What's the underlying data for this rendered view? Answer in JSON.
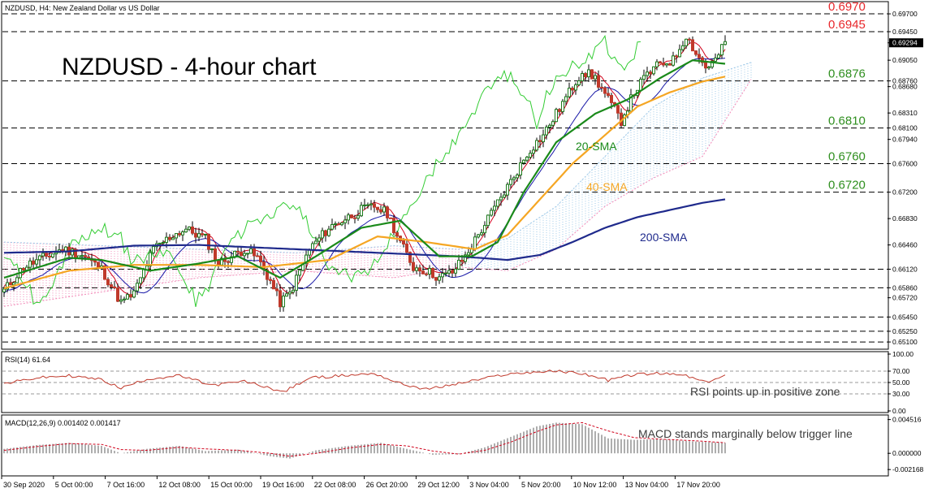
{
  "header": {
    "symbol_label": "NZDUSD, H4:  New Zealand Dollar vs US Dollar"
  },
  "title": "NZDUSD - 4-hour chart",
  "colors": {
    "level_label": "#e8272b",
    "support_label": "#2f8f1f",
    "sma20": "#1a8a1a",
    "sma40": "#f5a623",
    "sma200": "#1f2a8c",
    "tenkan": "#d0021b",
    "kijun": "#1a1aa8",
    "chikou": "#33cc33",
    "cloud_bull": "#9ec9e8",
    "cloud_bear": "#f28ab8",
    "candle_up": "#1e7a1e",
    "candle_down": "#c0392b",
    "rsi_line": "#c0392b",
    "macd_signal": "#d0021b",
    "macd_hist": "#9a9a9a",
    "annotation_text": "#3c3c3c"
  },
  "chart_data": [
    {
      "type": "candlestick",
      "name": "price",
      "ylim": [
        0.6501,
        0.6986
      ],
      "x_ticks": [
        "30 Sep 2020",
        "5 Oct 00:00",
        "7 Oct 16:00",
        "12 Oct 08:00",
        "15 Oct 00:00",
        "19 Oct 16:00",
        "22 Oct 08:00",
        "26 Oct 20:00",
        "29 Oct 12:00",
        "3 Nov 04:00",
        "5 Nov 20:00",
        "10 Nov 12:00",
        "13 Nov 04:00",
        "17 Nov 20:00"
      ],
      "y_ticks": [
        "0.69700",
        "0.69450",
        "0.69294",
        "0.69050",
        "0.68760",
        "0.68680",
        "0.68310",
        "0.68100",
        "0.67940",
        "0.67600",
        "0.67200",
        "0.66830",
        "0.66460",
        "0.66120",
        "0.65860",
        "0.65720",
        "0.65450",
        "0.65250",
        "0.65100"
      ],
      "current_price": "0.69294",
      "levels": [
        {
          "value": 0.697,
          "label": "0.6970",
          "style": "resistance"
        },
        {
          "value": 0.6945,
          "label": "0.6945",
          "style": "resistance"
        },
        {
          "value": 0.6876,
          "label": "0.6876",
          "style": "support"
        },
        {
          "value": 0.681,
          "label": "0.6810",
          "style": "support"
        },
        {
          "value": 0.676,
          "label": "0.6760",
          "style": "support"
        },
        {
          "value": 0.672,
          "label": "0.6720",
          "style": "support"
        },
        {
          "value": 0.6612,
          "label": "",
          "style": "plain"
        },
        {
          "value": 0.6586,
          "label": "",
          "style": "plain"
        },
        {
          "value": 0.6545,
          "label": "",
          "style": "plain"
        },
        {
          "value": 0.6525,
          "label": "",
          "style": "plain"
        },
        {
          "value": 0.651,
          "label": "",
          "style": "plain"
        }
      ],
      "indicator_labels": {
        "sma20": "20-SMA",
        "sma40": "40-SMA",
        "sma200": "200-SMA"
      },
      "close_path": [
        [
          0,
          0.6582
        ],
        [
          6,
          0.6615
        ],
        [
          12,
          0.6628
        ],
        [
          18,
          0.664
        ],
        [
          24,
          0.6632
        ],
        [
          30,
          0.6612
        ],
        [
          36,
          0.6565
        ],
        [
          40,
          0.6578
        ],
        [
          46,
          0.664
        ],
        [
          52,
          0.666
        ],
        [
          56,
          0.6668
        ],
        [
          62,
          0.6655
        ],
        [
          66,
          0.662
        ],
        [
          70,
          0.663
        ],
        [
          74,
          0.664
        ],
        [
          78,
          0.6628
        ],
        [
          82,
          0.6595
        ],
        [
          85,
          0.6565
        ],
        [
          88,
          0.6578
        ],
        [
          94,
          0.664
        ],
        [
          100,
          0.667
        ],
        [
          106,
          0.6685
        ],
        [
          110,
          0.6695
        ],
        [
          114,
          0.67
        ],
        [
          118,
          0.669
        ],
        [
          122,
          0.665
        ],
        [
          126,
          0.6615
        ],
        [
          130,
          0.661
        ],
        [
          134,
          0.66
        ],
        [
          138,
          0.6608
        ],
        [
          142,
          0.663
        ],
        [
          146,
          0.666
        ],
        [
          150,
          0.669
        ],
        [
          154,
          0.672
        ],
        [
          158,
          0.675
        ],
        [
          162,
          0.678
        ],
        [
          166,
          0.68
        ],
        [
          170,
          0.683
        ],
        [
          174,
          0.686
        ],
        [
          178,
          0.689
        ],
        [
          182,
          0.688
        ],
        [
          186,
          0.685
        ],
        [
          190,
          0.682
        ],
        [
          194,
          0.686
        ],
        [
          198,
          0.6885
        ],
        [
          202,
          0.69
        ],
        [
          206,
          0.6905
        ],
        [
          210,
          0.694
        ],
        [
          213,
          0.6915
        ],
        [
          216,
          0.6895
        ],
        [
          219,
          0.6905
        ],
        [
          222,
          0.6929
        ]
      ],
      "sma20_path": [
        [
          0,
          0.66
        ],
        [
          20,
          0.6628
        ],
        [
          30,
          0.6625
        ],
        [
          45,
          0.661
        ],
        [
          60,
          0.662
        ],
        [
          72,
          0.663
        ],
        [
          85,
          0.66
        ],
        [
          96,
          0.663
        ],
        [
          110,
          0.667
        ],
        [
          122,
          0.668
        ],
        [
          134,
          0.663
        ],
        [
          144,
          0.663
        ],
        [
          152,
          0.665
        ],
        [
          160,
          0.672
        ],
        [
          170,
          0.679
        ],
        [
          182,
          0.683
        ],
        [
          192,
          0.685
        ],
        [
          202,
          0.688
        ],
        [
          212,
          0.6905
        ],
        [
          222,
          0.69
        ]
      ],
      "sma40_path": [
        [
          0,
          0.6585
        ],
        [
          20,
          0.661
        ],
        [
          40,
          0.6618
        ],
        [
          60,
          0.6618
        ],
        [
          80,
          0.6615
        ],
        [
          100,
          0.6625
        ],
        [
          115,
          0.6658
        ],
        [
          130,
          0.665
        ],
        [
          145,
          0.664
        ],
        [
          155,
          0.666
        ],
        [
          165,
          0.671
        ],
        [
          175,
          0.676
        ],
        [
          185,
          0.68
        ],
        [
          195,
          0.684
        ],
        [
          205,
          0.686
        ],
        [
          215,
          0.6875
        ],
        [
          222,
          0.6882
        ]
      ],
      "sma200_path": [
        [
          0,
          0.6635
        ],
        [
          20,
          0.6637
        ],
        [
          40,
          0.6645
        ],
        [
          60,
          0.6646
        ],
        [
          80,
          0.6642
        ],
        [
          100,
          0.6638
        ],
        [
          120,
          0.6634
        ],
        [
          140,
          0.663
        ],
        [
          155,
          0.6625
        ],
        [
          165,
          0.6632
        ],
        [
          175,
          0.665
        ],
        [
          185,
          0.667
        ],
        [
          195,
          0.6685
        ],
        [
          205,
          0.6695
        ],
        [
          215,
          0.6705
        ],
        [
          222,
          0.671
        ]
      ],
      "cloud_top": [
        [
          0,
          0.665
        ],
        [
          30,
          0.6645
        ],
        [
          60,
          0.664
        ],
        [
          90,
          0.6635
        ],
        [
          120,
          0.6645
        ],
        [
          140,
          0.664
        ],
        [
          155,
          0.6655
        ],
        [
          170,
          0.67
        ],
        [
          185,
          0.677
        ],
        [
          200,
          0.684
        ],
        [
          215,
          0.688
        ],
        [
          230,
          0.6902
        ]
      ],
      "cloud_bottom": [
        [
          0,
          0.656
        ],
        [
          30,
          0.658
        ],
        [
          60,
          0.66
        ],
        [
          90,
          0.661
        ],
        [
          120,
          0.66
        ],
        [
          140,
          0.6615
        ],
        [
          155,
          0.661
        ],
        [
          170,
          0.664
        ],
        [
          185,
          0.67
        ],
        [
          200,
          0.674
        ],
        [
          215,
          0.677
        ],
        [
          230,
          0.6878
        ]
      ]
    },
    {
      "type": "line",
      "name": "RSI(14)",
      "header": "RSI(14) 61.64",
      "ylim": [
        0,
        100
      ],
      "y_ticks": [
        "100.00",
        "70.00",
        "50.00",
        "30.00",
        "0.00"
      ],
      "levels": [
        70,
        50,
        30
      ],
      "annotation": "RSI points up in positive zone",
      "path": [
        [
          0,
          48
        ],
        [
          10,
          58
        ],
        [
          20,
          62
        ],
        [
          30,
          55
        ],
        [
          36,
          40
        ],
        [
          44,
          56
        ],
        [
          54,
          62
        ],
        [
          64,
          45
        ],
        [
          74,
          52
        ],
        [
          82,
          40
        ],
        [
          86,
          33
        ],
        [
          94,
          58
        ],
        [
          104,
          62
        ],
        [
          114,
          66
        ],
        [
          122,
          48
        ],
        [
          130,
          38
        ],
        [
          138,
          46
        ],
        [
          146,
          55
        ],
        [
          154,
          64
        ],
        [
          162,
          68
        ],
        [
          170,
          70
        ],
        [
          178,
          66
        ],
        [
          186,
          54
        ],
        [
          194,
          64
        ],
        [
          202,
          66
        ],
        [
          210,
          62
        ],
        [
          216,
          50
        ],
        [
          222,
          61.64
        ]
      ]
    },
    {
      "type": "bar",
      "name": "MACD(12,26,9)",
      "header": "MACD(12,26,9) 0.001402 0.001417",
      "ylim": [
        -0.0028,
        0.0048
      ],
      "y_ticks": [
        "0.004516",
        "0.000000",
        "-0.002168"
      ],
      "annotation": "MACD stands marginally below trigger line",
      "path": [
        [
          0,
          0.0006
        ],
        [
          10,
          0.0011
        ],
        [
          20,
          0.0014
        ],
        [
          30,
          0.001
        ],
        [
          36,
          0.0
        ],
        [
          44,
          0.0006
        ],
        [
          54,
          0.001
        ],
        [
          62,
          0.0003
        ],
        [
          72,
          0.0005
        ],
        [
          82,
          -0.0004
        ],
        [
          88,
          -0.0007
        ],
        [
          96,
          0.0004
        ],
        [
          106,
          0.001
        ],
        [
          116,
          0.0014
        ],
        [
          124,
          0.0006
        ],
        [
          132,
          -0.0002
        ],
        [
          140,
          -0.0001
        ],
        [
          148,
          0.0008
        ],
        [
          156,
          0.0022
        ],
        [
          164,
          0.0036
        ],
        [
          170,
          0.0041
        ],
        [
          178,
          0.0039
        ],
        [
          186,
          0.002
        ],
        [
          194,
          0.0018
        ],
        [
          202,
          0.0019
        ],
        [
          212,
          0.0016
        ],
        [
          222,
          0.0014
        ]
      ],
      "signal_path": [
        [
          0,
          0.0004
        ],
        [
          10,
          0.0009
        ],
        [
          20,
          0.0013
        ],
        [
          30,
          0.0012
        ],
        [
          36,
          0.0005
        ],
        [
          44,
          0.0004
        ],
        [
          54,
          0.0008
        ],
        [
          62,
          0.0006
        ],
        [
          72,
          0.0004
        ],
        [
          82,
          0.0
        ],
        [
          88,
          -0.0004
        ],
        [
          96,
          0.0
        ],
        [
          106,
          0.0007
        ],
        [
          116,
          0.0012
        ],
        [
          124,
          0.001
        ],
        [
          132,
          0.0003
        ],
        [
          140,
          -0.0001
        ],
        [
          148,
          0.0004
        ],
        [
          156,
          0.0015
        ],
        [
          164,
          0.0029
        ],
        [
          170,
          0.0038
        ],
        [
          178,
          0.0041
        ],
        [
          186,
          0.003
        ],
        [
          194,
          0.0021
        ],
        [
          202,
          0.0019
        ],
        [
          212,
          0.0017
        ],
        [
          222,
          0.00142
        ]
      ]
    }
  ]
}
